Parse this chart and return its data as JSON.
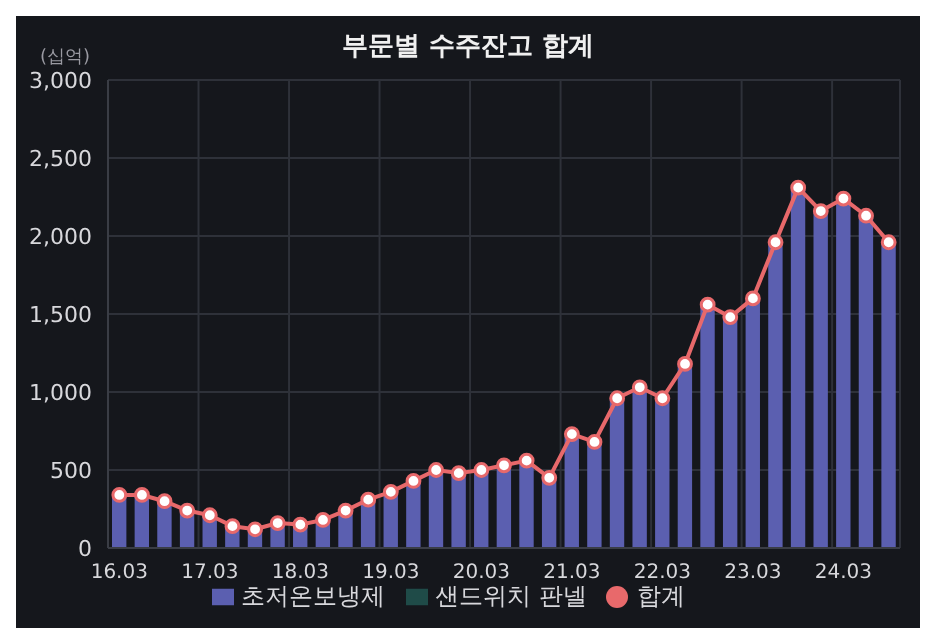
{
  "chart_data": {
    "type": "bar",
    "title": "부문별 수주잔고 합계",
    "ylabel": "(십억)",
    "categories": [
      "16.03",
      null,
      null,
      null,
      "17.03",
      null,
      null,
      null,
      "18.03",
      null,
      null,
      null,
      "19.03",
      null,
      null,
      null,
      "20.03",
      null,
      null,
      null,
      "21.03",
      null,
      null,
      null,
      "22.03",
      null,
      null,
      null,
      "23.03",
      null,
      null,
      null,
      "24.03",
      null,
      null
    ],
    "series": [
      {
        "name": "초저온보냉제",
        "color": "#5b5fb0",
        "values": [
          340,
          340,
          300,
          240,
          210,
          140,
          120,
          160,
          150,
          180,
          240,
          310,
          360,
          430,
          500,
          480,
          500,
          530,
          560,
          450,
          730,
          680,
          960,
          1030,
          960,
          1180,
          1560,
          1480,
          1600,
          1960,
          2310,
          2160,
          2240,
          2130,
          1960
        ]
      },
      {
        "name": "샌드위치 판넬",
        "color": "#1f4b48",
        "values": [
          0,
          0,
          0,
          0,
          0,
          0,
          0,
          0,
          0,
          0,
          0,
          0,
          0,
          0,
          0,
          0,
          0,
          0,
          0,
          0,
          0,
          0,
          0,
          0,
          0,
          0,
          0,
          0,
          0,
          0,
          0,
          0,
          0,
          0,
          0
        ]
      },
      {
        "name": "합계",
        "type": "line",
        "color": "#e8696b",
        "values": [
          340,
          340,
          300,
          240,
          210,
          140,
          120,
          160,
          150,
          180,
          240,
          310,
          360,
          430,
          500,
          480,
          500,
          530,
          560,
          450,
          730,
          680,
          960,
          1030,
          960,
          1180,
          1560,
          1480,
          1600,
          1960,
          2310,
          2160,
          2240,
          2130,
          1960
        ]
      }
    ],
    "stacked": true,
    "marker": "circle",
    "ylim": [
      0,
      3000
    ],
    "yticks": [
      0,
      500,
      {
        "value": 1000,
        "label": "1,000"
      },
      {
        "value": 1500,
        "label": "1,500"
      },
      {
        "value": 2000,
        "label": "2,000"
      },
      {
        "value": 2500,
        "label": "2,500"
      },
      {
        "value": 3000,
        "label": "3,000"
      }
    ],
    "grid": true,
    "legend": "bottom"
  }
}
